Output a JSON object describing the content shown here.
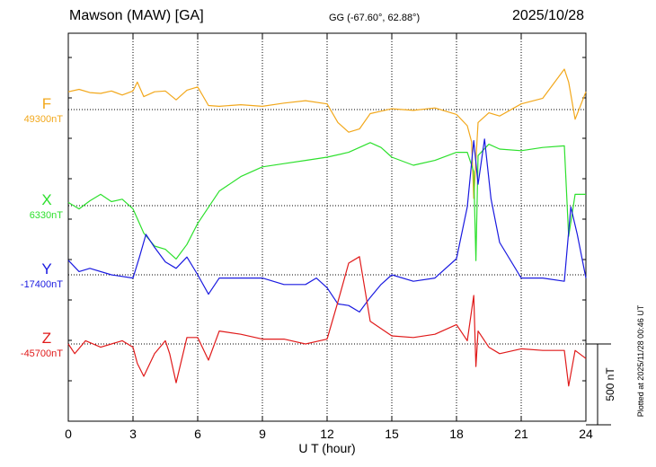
{
  "header": {
    "station": "Mawson (MAW)  [GA]",
    "coords": "GG (-67.60°,  62.88°)",
    "date": "2025/10/28",
    "footer": "Plotted at 2025/11/28 00:46 UT"
  },
  "chart_data": {
    "type": "line",
    "title": "Mawson (MAW)  [GA]",
    "xlabel": "U T (hour)",
    "xlim": [
      0,
      24
    ],
    "xticks": [
      0,
      3,
      6,
      9,
      12,
      15,
      18,
      21,
      24
    ],
    "grid": true,
    "scale_bar_label": "500 nT",
    "series": [
      {
        "name": "F",
        "baseline_label": "49300nT",
        "color": "#f2a81c",
        "x": [
          0,
          0.5,
          1,
          1.5,
          2,
          2.5,
          3,
          3.2,
          3.5,
          4,
          4.5,
          5,
          5.5,
          6,
          6.5,
          7,
          8,
          9,
          10,
          11,
          12,
          12.5,
          13,
          13.5,
          14,
          14.5,
          15,
          16,
          17,
          18,
          18.5,
          18.7,
          18.8,
          19,
          19.5,
          20,
          21,
          22,
          23,
          23.2,
          23.5,
          24
        ],
        "y": [
          110,
          125,
          105,
          100,
          115,
          90,
          115,
          170,
          80,
          110,
          115,
          60,
          120,
          140,
          25,
          20,
          30,
          20,
          40,
          55,
          35,
          -80,
          -140,
          -120,
          -25,
          -10,
          5,
          -5,
          10,
          -30,
          -100,
          -200,
          -550,
          -80,
          -20,
          -40,
          35,
          70,
          250,
          170,
          -60,
          110
        ]
      },
      {
        "name": "X",
        "baseline_label": "6330nT",
        "color": "#2de02d",
        "x": [
          0,
          0.5,
          1,
          1.5,
          2,
          2.5,
          3,
          3.5,
          4,
          4.5,
          5,
          5.5,
          6,
          7,
          8,
          9,
          10,
          11,
          12,
          13,
          14,
          14.5,
          15,
          16,
          17,
          18,
          18.5,
          18.8,
          18.9,
          19,
          19.5,
          20,
          21,
          22,
          23,
          23.2,
          23.5,
          24
        ],
        "y": [
          20,
          -20,
          30,
          70,
          25,
          40,
          -20,
          -170,
          -250,
          -270,
          -330,
          -240,
          -110,
          90,
          180,
          240,
          260,
          280,
          300,
          330,
          390,
          360,
          300,
          250,
          280,
          330,
          330,
          210,
          -340,
          310,
          380,
          350,
          340,
          360,
          370,
          -190,
          70,
          70
        ]
      },
      {
        "name": "Y",
        "baseline_label": "-17400nT",
        "color": "#1a1ae0",
        "x": [
          0,
          0.5,
          1,
          2,
          3,
          3.3,
          3.6,
          4,
          4.5,
          5,
          5.5,
          6,
          6.5,
          7,
          8,
          9,
          10,
          11,
          11.5,
          12,
          12.5,
          13,
          13.5,
          14,
          14.5,
          15,
          16,
          17,
          18,
          18.5,
          18.8,
          19,
          19.3,
          19.6,
          20,
          21,
          22,
          23,
          23.3,
          23.6,
          24
        ],
        "y": [
          90,
          20,
          40,
          0,
          -20,
          110,
          250,
          170,
          80,
          40,
          110,
          0,
          -120,
          -20,
          -20,
          -20,
          -60,
          -60,
          -20,
          -80,
          -180,
          -190,
          -230,
          -140,
          -60,
          0,
          -40,
          -20,
          100,
          420,
          830,
          560,
          840,
          470,
          200,
          -20,
          -20,
          -40,
          420,
          250,
          -20
        ]
      },
      {
        "name": "Z",
        "baseline_label": "-45700nT",
        "color": "#e01a1a",
        "x": [
          0,
          0.3,
          0.8,
          1.5,
          2,
          2.5,
          3,
          3.2,
          3.5,
          4,
          4.5,
          4.7,
          5,
          5.5,
          6,
          6.5,
          7,
          8,
          9,
          10,
          11,
          12,
          12.5,
          13,
          13.5,
          14,
          15,
          16,
          17,
          18,
          18.5,
          18.8,
          18.9,
          19,
          19.5,
          20,
          21,
          22,
          23,
          23.2,
          23.5,
          24
        ],
        "y": [
          0,
          -60,
          20,
          -20,
          0,
          20,
          -20,
          -120,
          -200,
          -60,
          20,
          -60,
          -240,
          40,
          40,
          -100,
          80,
          60,
          30,
          30,
          0,
          30,
          260,
          500,
          540,
          140,
          50,
          40,
          60,
          120,
          20,
          300,
          -140,
          80,
          -20,
          -60,
          -30,
          -40,
          -40,
          -260,
          -40,
          -90
        ]
      }
    ]
  },
  "colors": {
    "F": "#f2a81c",
    "X": "#2de02d",
    "Y": "#1a1ae0",
    "Z": "#e01a1a"
  }
}
